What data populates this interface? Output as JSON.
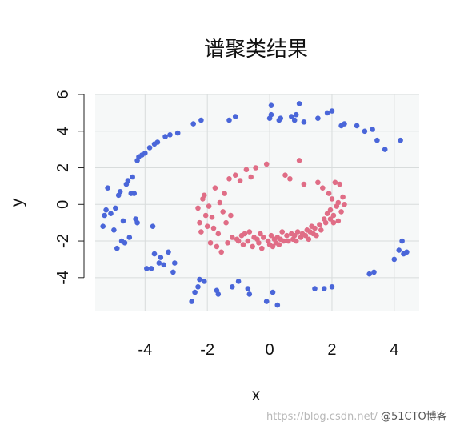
{
  "chart_data": {
    "type": "scatter",
    "title": "谱聚类结果",
    "xlabel": "x",
    "ylabel": "y",
    "xlim": [
      -5.6,
      4.8
    ],
    "ylim": [
      -5.8,
      6.0
    ],
    "xticks": [
      -4,
      -2,
      0,
      2,
      4
    ],
    "yticks": [
      -4,
      -2,
      0,
      2,
      4,
      6
    ],
    "xtick_labels": [
      "-4",
      "-2",
      "0",
      "2",
      "4"
    ],
    "ytick_labels": [
      "-4",
      "-2",
      "0",
      "2",
      "4",
      "6"
    ],
    "grid": true,
    "legend": "none",
    "series": [
      {
        "color": "#4a66d9",
        "points": [
          [
            -5.35,
            -1.2
          ],
          [
            -5.3,
            -0.6
          ],
          [
            -5.25,
            -0.3
          ],
          [
            -5.2,
            0.9
          ],
          [
            -5.1,
            -0.5
          ],
          [
            -5.0,
            -1.4
          ],
          [
            -4.95,
            -0.2
          ],
          [
            -4.9,
            -2.4
          ],
          [
            -4.85,
            0.5
          ],
          [
            -4.8,
            0.7
          ],
          [
            -4.75,
            -2.0
          ],
          [
            -4.7,
            -0.9
          ],
          [
            -4.65,
            -2.1
          ],
          [
            -4.6,
            1.1
          ],
          [
            -4.55,
            1.3
          ],
          [
            -4.5,
            -1.8
          ],
          [
            -4.45,
            0.6
          ],
          [
            -4.4,
            1.5
          ],
          [
            -4.35,
            0.6
          ],
          [
            -4.3,
            -0.8
          ],
          [
            -4.25,
            -1.0
          ],
          [
            -4.25,
            2.4
          ],
          [
            -4.2,
            2.6
          ],
          [
            -4.1,
            2.7
          ],
          [
            -4.0,
            2.8
          ],
          [
            -3.95,
            -3.5
          ],
          [
            -3.8,
            -3.5
          ],
          [
            -3.85,
            3.1
          ],
          [
            -3.75,
            -1.2
          ],
          [
            -3.7,
            -2.7
          ],
          [
            -3.7,
            3.3
          ],
          [
            -3.6,
            3.4
          ],
          [
            -3.55,
            -3.2
          ],
          [
            -3.5,
            -2.9
          ],
          [
            -3.4,
            -3.3
          ],
          [
            -3.35,
            3.7
          ],
          [
            -3.25,
            -2.6
          ],
          [
            -3.2,
            3.8
          ],
          [
            -3.1,
            -3.7
          ],
          [
            -3.05,
            -3.2
          ],
          [
            -2.95,
            3.9
          ],
          [
            -2.5,
            -5.3
          ],
          [
            -2.45,
            4.4
          ],
          [
            -2.4,
            -4.8
          ],
          [
            -2.3,
            -4.5
          ],
          [
            -2.25,
            -4.1
          ],
          [
            -2.2,
            4.6
          ],
          [
            -2.1,
            -4.2
          ],
          [
            -1.7,
            -4.7
          ],
          [
            -1.65,
            -4.9
          ],
          [
            -1.3,
            4.6
          ],
          [
            -1.2,
            -4.5
          ],
          [
            -1.1,
            4.8
          ],
          [
            -1.0,
            -4.2
          ],
          [
            -0.7,
            -4.6
          ],
          [
            -0.65,
            -4.9
          ],
          [
            -0.1,
            -5.3
          ],
          [
            0.0,
            4.7
          ],
          [
            0.05,
            5.4
          ],
          [
            0.05,
            4.9
          ],
          [
            0.1,
            -4.8
          ],
          [
            0.25,
            -5.5
          ],
          [
            0.3,
            4.6
          ],
          [
            0.35,
            4.7
          ],
          [
            0.7,
            4.8
          ],
          [
            0.8,
            4.6
          ],
          [
            0.85,
            4.9
          ],
          [
            0.95,
            5.5
          ],
          [
            1.1,
            4.5
          ],
          [
            1.45,
            -4.6
          ],
          [
            1.55,
            4.7
          ],
          [
            1.75,
            -4.6
          ],
          [
            1.85,
            5.0
          ],
          [
            2.0,
            5.1
          ],
          [
            2.0,
            -4.5
          ],
          [
            2.3,
            4.3
          ],
          [
            2.4,
            4.4
          ],
          [
            2.8,
            4.3
          ],
          [
            3.05,
            4.0
          ],
          [
            3.2,
            -3.8
          ],
          [
            3.3,
            4.1
          ],
          [
            3.35,
            -3.7
          ],
          [
            3.45,
            3.5
          ],
          [
            3.7,
            3.0
          ],
          [
            4.0,
            -3.0
          ],
          [
            4.15,
            -2.5
          ],
          [
            4.2,
            3.5
          ],
          [
            4.25,
            -2.0
          ],
          [
            4.3,
            -2.7
          ],
          [
            4.4,
            -2.6
          ]
        ]
      },
      {
        "color": "#e06d86",
        "points": [
          [
            -2.3,
            -0.2
          ],
          [
            -2.25,
            -1.0
          ],
          [
            -2.2,
            -1.5
          ],
          [
            -2.15,
            0.3
          ],
          [
            -2.1,
            0.5
          ],
          [
            -2.05,
            -0.6
          ],
          [
            -2.0,
            -1.2
          ],
          [
            -1.95,
            -0.1
          ],
          [
            -1.9,
            -2.1
          ],
          [
            -1.85,
            -0.7
          ],
          [
            -1.8,
            -1.3
          ],
          [
            -1.75,
            0.9
          ],
          [
            -1.7,
            -2.3
          ],
          [
            -1.65,
            -1.6
          ],
          [
            -1.6,
            0.1
          ],
          [
            -1.55,
            -2.6
          ],
          [
            -1.5,
            -0.4
          ],
          [
            -1.45,
            0.6
          ],
          [
            -1.4,
            -1.0
          ],
          [
            -1.35,
            -2.1
          ],
          [
            -1.3,
            1.4
          ],
          [
            -1.25,
            -0.6
          ],
          [
            -1.2,
            -1.8
          ],
          [
            -1.1,
            1.6
          ],
          [
            -1.05,
            -1.9
          ],
          [
            -1.0,
            -2.0
          ],
          [
            -0.95,
            1.3
          ],
          [
            -0.9,
            -1.7
          ],
          [
            -0.85,
            -2.2
          ],
          [
            -0.8,
            -1.6
          ],
          [
            -0.75,
            1.9
          ],
          [
            -0.7,
            -2.0
          ],
          [
            -0.65,
            -1.5
          ],
          [
            -0.6,
            1.5
          ],
          [
            -0.55,
            -2.3
          ],
          [
            -0.5,
            -1.8
          ],
          [
            -0.45,
            2.0
          ],
          [
            -0.4,
            -1.9
          ],
          [
            -0.35,
            -2.1
          ],
          [
            -0.3,
            -1.6
          ],
          [
            -0.25,
            -2.4
          ],
          [
            -0.2,
            -1.8
          ],
          [
            -0.1,
            2.2
          ],
          [
            -0.05,
            -2.0
          ],
          [
            0.0,
            -2.2
          ],
          [
            0.05,
            -1.7
          ],
          [
            0.1,
            -2.3
          ],
          [
            0.15,
            -1.9
          ],
          [
            0.2,
            -2.1
          ],
          [
            0.25,
            -1.8
          ],
          [
            0.3,
            -2.2
          ],
          [
            0.35,
            -1.9
          ],
          [
            0.4,
            -1.5
          ],
          [
            0.45,
            -2.0
          ],
          [
            0.5,
            1.6
          ],
          [
            0.55,
            -1.7
          ],
          [
            0.6,
            -2.0
          ],
          [
            0.65,
            1.4
          ],
          [
            0.7,
            -1.6
          ],
          [
            0.75,
            -1.9
          ],
          [
            0.8,
            -1.7
          ],
          [
            0.85,
            -2.0
          ],
          [
            0.9,
            -1.5
          ],
          [
            0.95,
            2.4
          ],
          [
            1.0,
            -1.8
          ],
          [
            1.05,
            -1.6
          ],
          [
            1.1,
            1.1
          ],
          [
            1.15,
            -1.7
          ],
          [
            1.2,
            -1.4
          ],
          [
            1.25,
            -1.9
          ],
          [
            1.3,
            -1.5
          ],
          [
            1.35,
            -1.2
          ],
          [
            1.4,
            -1.6
          ],
          [
            1.45,
            -1.3
          ],
          [
            1.5,
            -1.7
          ],
          [
            1.55,
            1.2
          ],
          [
            1.6,
            -1.1
          ],
          [
            1.65,
            -1.4
          ],
          [
            1.7,
            0.9
          ],
          [
            1.75,
            -0.8
          ],
          [
            1.8,
            -1.0
          ],
          [
            1.85,
            -0.5
          ],
          [
            1.9,
            0.6
          ],
          [
            1.95,
            -0.3
          ],
          [
            2.0,
            0.3
          ],
          [
            2.05,
            -0.6
          ],
          [
            2.1,
            1.2
          ],
          [
            2.15,
            -0.1
          ],
          [
            2.2,
            0.1
          ],
          [
            2.25,
            1.1
          ],
          [
            2.3,
            -0.4
          ],
          [
            2.35,
            0.4
          ],
          [
            2.4,
            0.0
          ],
          [
            2.2,
            -0.9
          ],
          [
            2.05,
            -1.0
          ],
          [
            1.95,
            -0.8
          ]
        ]
      }
    ]
  },
  "watermark": {
    "url_text": "https://blog.csdn.net/",
    "brand_text": "@51CTO博客"
  }
}
